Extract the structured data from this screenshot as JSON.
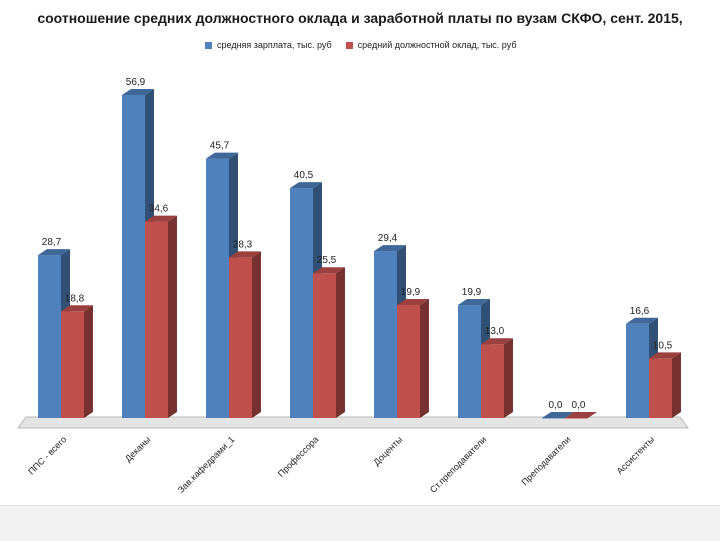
{
  "chart_data": {
    "type": "bar",
    "title": "соотношение средних должностного оклада и заработной платы по вузам СКФО, сент. 2015,",
    "categories": [
      "ППС - всего",
      "Деканы",
      "Зав.кафедрами_1",
      "Профессора",
      "Доценты",
      "Ст.преподаватели",
      "Преподаватели",
      "Ассистенты"
    ],
    "series": [
      {
        "name": "средняя зарплата, тыс. руб",
        "color": "#4f81bd",
        "values": [
          28.7,
          56.9,
          45.7,
          40.5,
          29.4,
          19.9,
          0.0,
          16.6
        ],
        "labels": [
          "28,7",
          "56,9",
          "45,7",
          "40,5",
          "29,4",
          "19,9",
          "0,0",
          "16,6"
        ]
      },
      {
        "name": "средний должностной оклад, тыс. руб",
        "color": "#c0504d",
        "values": [
          18.8,
          34.6,
          28.3,
          25.5,
          19.9,
          13.0,
          0.0,
          10.5
        ],
        "labels": [
          "18,8",
          "34,6",
          "28,3",
          "25,5",
          "19,9",
          "13,0",
          "0,0",
          "10,5"
        ]
      }
    ],
    "ylim": [
      0,
      60
    ],
    "grid": false,
    "legend_position": "top",
    "chart_style": "3d-clustered-column"
  }
}
